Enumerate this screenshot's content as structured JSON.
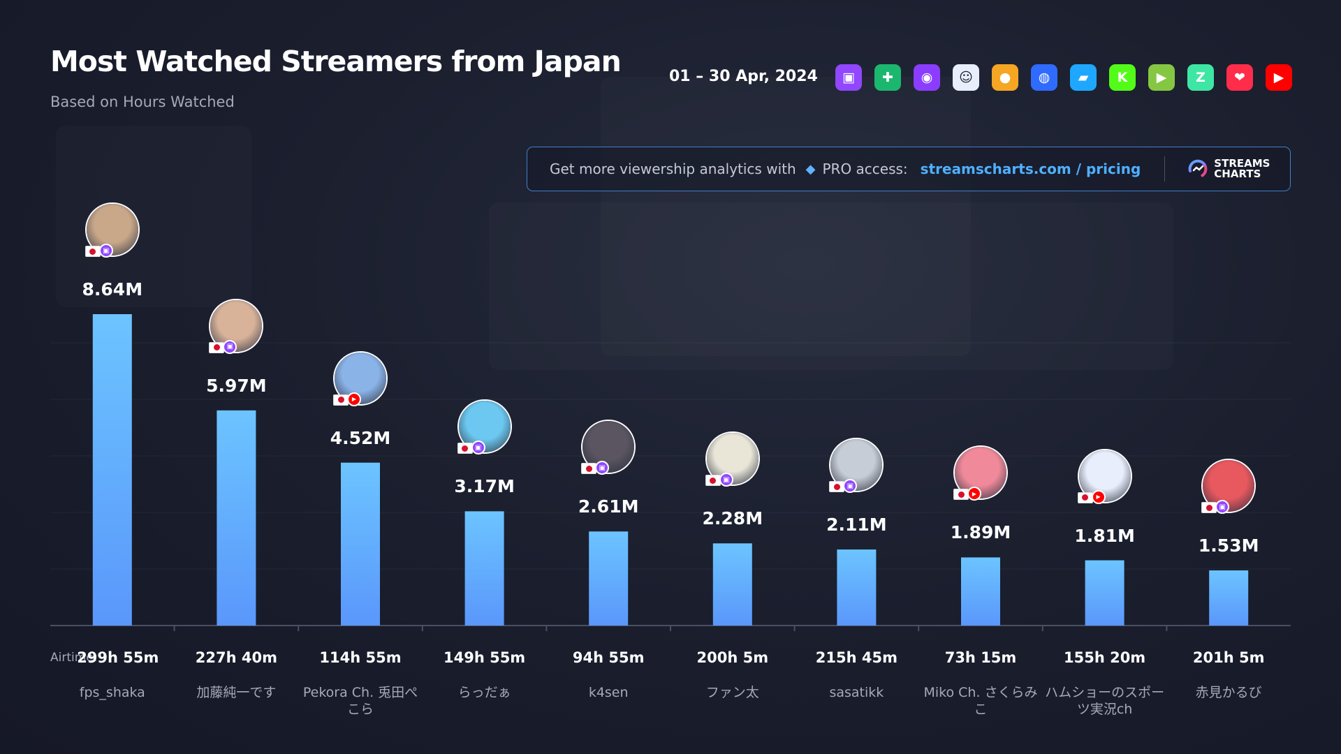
{
  "header": {
    "title": "Most Watched Streamers from Japan",
    "subtitle": "Based on Hours Watched",
    "date_range": "01 – 30 Apr, 2024"
  },
  "platforms": [
    {
      "icon": "twitch-icon",
      "glyph": "",
      "color": "#9146ff"
    },
    {
      "icon": "trovo-icon",
      "glyph": "",
      "color": "#1bb76e"
    },
    {
      "icon": "nimo-icon",
      "glyph": "",
      "color": "#8b3dff"
    },
    {
      "icon": "afreecatv-icon",
      "glyph": "",
      "color": "#e8eefc"
    },
    {
      "icon": "booyah-icon",
      "glyph": "",
      "color": "#f5a623"
    },
    {
      "icon": "bigo-icon",
      "glyph": "",
      "color": "#2f6bff"
    },
    {
      "icon": "openrec-icon",
      "glyph": "",
      "color": "#1fa7ff"
    },
    {
      "icon": "kick-icon",
      "glyph": "",
      "color": "#53fc18"
    },
    {
      "icon": "rumble-icon",
      "glyph": "",
      "color": "#85c742"
    },
    {
      "icon": "zcool-icon",
      "glyph": "",
      "color": "#3ee6a3"
    },
    {
      "icon": "heart-platform-icon",
      "glyph": "",
      "color": "#ff2d4a"
    },
    {
      "icon": "youtube-icon",
      "glyph": "",
      "color": "#ff0000"
    }
  ],
  "pro_banner": {
    "text": "Get more viewership analytics with",
    "pro_label": "PRO access:",
    "link": "streamscharts.com / pricing",
    "brand_line1": "STREAMS",
    "brand_line2": "CHARTS"
  },
  "airtime_label": "Airtime:",
  "colors": {
    "bar_top": "#6cc4ff",
    "bar_bottom": "#5a97fb",
    "twitch": "#9146ff",
    "youtube": "#ff0000"
  },
  "chart_data": {
    "type": "bar",
    "categories": [
      "fps_shaka",
      "加藤純一です",
      "Pekora Ch. 兎田ぺこら",
      "らっだぁ",
      "k4sen",
      "ファン太",
      "sasatikk",
      "Miko Ch. さくらみこ",
      "ハムショーのスポーツ実況ch",
      "赤見かるび"
    ],
    "values": [
      8.64,
      5.97,
      4.52,
      3.17,
      2.61,
      2.28,
      2.11,
      1.89,
      1.81,
      1.53
    ],
    "value_labels": [
      "8.64M",
      "5.97M",
      "4.52M",
      "3.17M",
      "2.61M",
      "2.28M",
      "2.11M",
      "1.89M",
      "1.81M",
      "1.53M"
    ],
    "airtime": [
      "299h 55m",
      "227h 40m",
      "114h 55m",
      "149h 55m",
      "94h 55m",
      "200h 5m",
      "215h 45m",
      "73h 15m",
      "155h 20m",
      "201h 5m"
    ],
    "platform": [
      "twitch",
      "twitch",
      "youtube",
      "twitch",
      "twitch",
      "twitch",
      "twitch",
      "youtube",
      "youtube",
      "twitch"
    ],
    "avatar_colors": [
      "#c9a88a",
      "#d8b39a",
      "#8ab4e8",
      "#6cc8f0",
      "#5a5560",
      "#e9e6d8",
      "#c7cdd6",
      "#f08a9a",
      "#e8eefc",
      "#e8585f"
    ],
    "country": "Japan",
    "title": "Most Watched Streamers from Japan",
    "subtitle": "Based on Hours Watched",
    "ylim": [
      0,
      10
    ],
    "grid": true
  }
}
